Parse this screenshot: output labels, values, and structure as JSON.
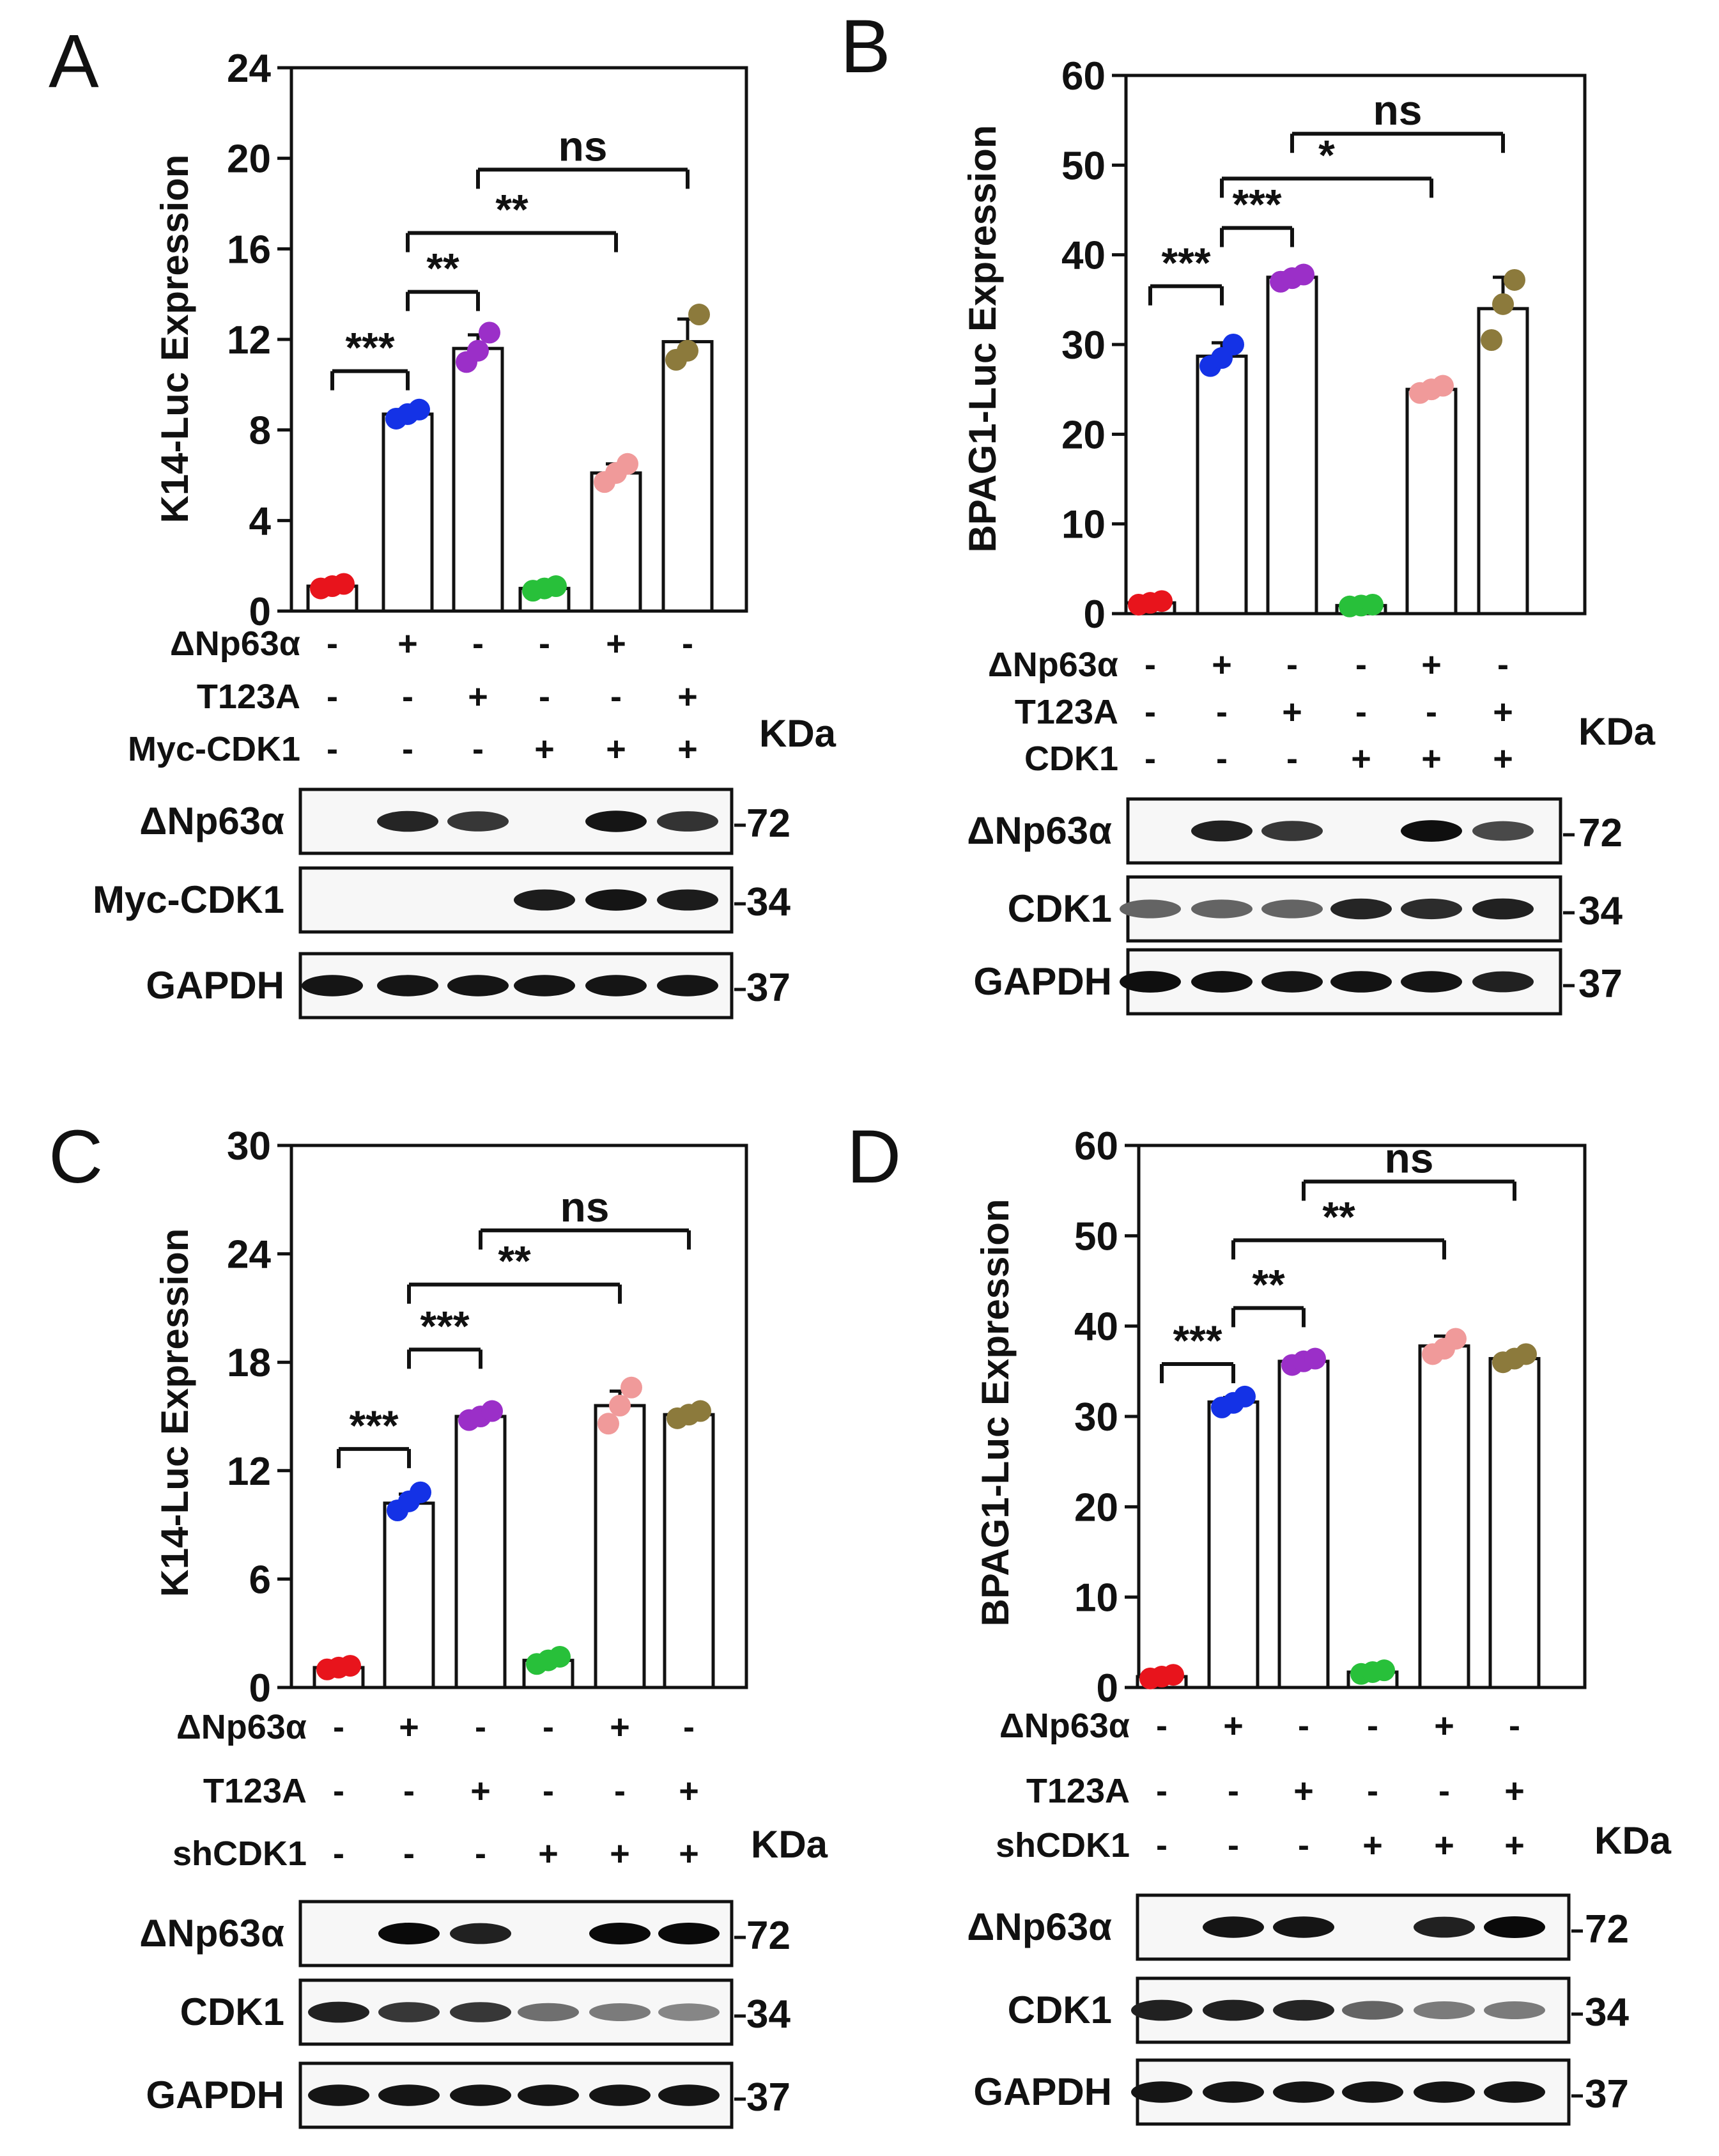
{
  "chart_data": [
    {
      "panel": "A",
      "type": "bar",
      "ylabel": "K14-Luc Expression",
      "ylim": [
        0,
        24
      ],
      "yticks": [
        0,
        4,
        8,
        12,
        16,
        20,
        24
      ],
      "values": [
        1.1,
        8.7,
        11.6,
        1.0,
        6.1,
        11.9
      ],
      "errors": [
        0.1,
        0.2,
        0.6,
        0.1,
        0.4,
        1.0
      ],
      "points": [
        [
          1.0,
          1.1,
          1.2
        ],
        [
          8.5,
          8.7,
          8.9
        ],
        [
          11.0,
          11.5,
          12.3
        ],
        [
          0.9,
          1.0,
          1.1
        ],
        [
          5.7,
          6.1,
          6.5
        ],
        [
          11.1,
          11.5,
          13.1
        ]
      ],
      "point_colors": [
        "#e8141c",
        "#1432e6",
        "#9b2fc8",
        "#28c03a",
        "#f09a9a",
        "#8c7a3c"
      ],
      "conditions": [
        {
          "label": "ΔNp63α",
          "signs": [
            "-",
            "+",
            "-",
            "-",
            "+",
            "-"
          ]
        },
        {
          "label": "T123A",
          "signs": [
            "-",
            "-",
            "+",
            "-",
            "-",
            "+"
          ]
        },
        {
          "label": "Myc-CDK1",
          "signs": [
            "-",
            "-",
            "-",
            "+",
            "+",
            "+"
          ]
        }
      ],
      "significance": [
        {
          "from": 0,
          "to": 1,
          "y": 10.6,
          "label": "***"
        },
        {
          "from": 1,
          "to": 2,
          "y": 14.1,
          "label": "**"
        },
        {
          "from": 1,
          "to": 4,
          "y": 16.7,
          "label": "**"
        },
        {
          "from": 2,
          "to": 5,
          "y": 19.5,
          "label": "ns"
        }
      ],
      "kda_label": "KDa",
      "blots": [
        {
          "label": "ΔNp63α",
          "mw": "72",
          "intensity": [
            0,
            0.88,
            0.8,
            0,
            0.95,
            0.82
          ]
        },
        {
          "label": "Myc-CDK1",
          "mw": "34",
          "intensity": [
            0,
            0,
            0,
            0.92,
            0.95,
            0.92
          ]
        },
        {
          "label": "GAPDH",
          "mw": "37",
          "intensity": [
            0.95,
            0.95,
            0.95,
            0.95,
            0.95,
            0.95
          ]
        }
      ]
    },
    {
      "panel": "B",
      "type": "bar",
      "ylabel": "BPAG1-Luc Expression",
      "ylim": [
        0,
        60
      ],
      "yticks": [
        0,
        10,
        20,
        30,
        40,
        50,
        60
      ],
      "values": [
        1.2,
        28.7,
        37.5,
        0.9,
        25.0,
        34.0
      ],
      "errors": [
        0.2,
        1.5,
        0.5,
        0.1,
        0.4,
        3.5
      ],
      "points": [
        [
          1.0,
          1.2,
          1.4
        ],
        [
          27.6,
          28.5,
          30.0
        ],
        [
          37.0,
          37.4,
          37.8
        ],
        [
          0.8,
          0.9,
          1.0
        ],
        [
          24.6,
          25.0,
          25.4
        ],
        [
          30.5,
          34.5,
          37.2
        ]
      ],
      "point_colors": [
        "#e8141c",
        "#1432e6",
        "#9b2fc8",
        "#28c03a",
        "#f09a9a",
        "#8c7a3c"
      ],
      "conditions": [
        {
          "label": "ΔNp63α",
          "signs": [
            "-",
            "+",
            "-",
            "-",
            "+",
            "-"
          ]
        },
        {
          "label": "T123A",
          "signs": [
            "-",
            "-",
            "+",
            "-",
            "-",
            "+"
          ]
        },
        {
          "label": "CDK1",
          "signs": [
            "-",
            "-",
            "-",
            "+",
            "+",
            "+"
          ]
        }
      ],
      "significance": [
        {
          "from": 0,
          "to": 1,
          "y": 36.5,
          "label": "***"
        },
        {
          "from": 1,
          "to": 2,
          "y": 43.0,
          "label": "***"
        },
        {
          "from": 1,
          "to": 4,
          "y": 48.5,
          "label": "*"
        },
        {
          "from": 2,
          "to": 5,
          "y": 53.5,
          "label": "ns"
        }
      ],
      "kda_label": "KDa",
      "blots": [
        {
          "label": "ΔNp63α",
          "mw": "72",
          "intensity": [
            0,
            0.9,
            0.8,
            0,
            0.98,
            0.72
          ]
        },
        {
          "label": "CDK1",
          "mw": "34",
          "intensity": [
            0.6,
            0.6,
            0.6,
            0.88,
            0.85,
            0.9
          ]
        },
        {
          "label": "GAPDH",
          "mw": "37",
          "intensity": [
            0.98,
            0.97,
            0.95,
            0.96,
            0.95,
            0.9
          ]
        }
      ]
    },
    {
      "panel": "C",
      "type": "bar",
      "ylabel": "K14-Luc Expression",
      "ylim": [
        0,
        30
      ],
      "yticks": [
        0,
        6,
        12,
        18,
        24,
        30
      ],
      "values": [
        1.1,
        10.2,
        15.0,
        1.5,
        15.6,
        15.1
      ],
      "errors": [
        0.1,
        0.5,
        0.2,
        0.2,
        0.8,
        0.2
      ],
      "points": [
        [
          1.0,
          1.1,
          1.2
        ],
        [
          9.8,
          10.3,
          10.8
        ],
        [
          14.8,
          15.0,
          15.3
        ],
        [
          1.3,
          1.5,
          1.7
        ],
        [
          14.6,
          15.6,
          16.6
        ],
        [
          14.9,
          15.1,
          15.3
        ]
      ],
      "point_colors": [
        "#e8141c",
        "#1432e6",
        "#9b2fc8",
        "#28c03a",
        "#f09a9a",
        "#8c7a3c"
      ],
      "conditions": [
        {
          "label": "ΔNp63α",
          "signs": [
            "-",
            "+",
            "-",
            "-",
            "+",
            "-"
          ]
        },
        {
          "label": "T123A",
          "signs": [
            "-",
            "-",
            "+",
            "-",
            "-",
            "+"
          ]
        },
        {
          "label": "shCDK1",
          "signs": [
            "-",
            "-",
            "-",
            "+",
            "+",
            "+"
          ]
        }
      ],
      "significance": [
        {
          "from": 0,
          "to": 1,
          "y": 13.2,
          "label": "***"
        },
        {
          "from": 1,
          "to": 2,
          "y": 18.7,
          "label": "***"
        },
        {
          "from": 1,
          "to": 4,
          "y": 22.3,
          "label": "**"
        },
        {
          "from": 2,
          "to": 5,
          "y": 25.3,
          "label": "ns"
        }
      ],
      "kda_label": "KDa",
      "blots": [
        {
          "label": "ΔNp63α",
          "mw": "72",
          "intensity": [
            0,
            1.0,
            0.9,
            0,
            1.0,
            1.0
          ]
        },
        {
          "label": "CDK1",
          "mw": "34",
          "intensity": [
            0.9,
            0.8,
            0.8,
            0.55,
            0.5,
            0.45
          ]
        },
        {
          "label": "GAPDH",
          "mw": "37",
          "intensity": [
            0.95,
            0.95,
            0.95,
            0.95,
            0.95,
            0.95
          ]
        }
      ]
    },
    {
      "panel": "D",
      "type": "bar",
      "ylabel": "BPAG1-Luc Expression",
      "ylim": [
        0,
        60
      ],
      "yticks": [
        0,
        10,
        20,
        30,
        40,
        50,
        60
      ],
      "values": [
        1.2,
        31.6,
        36.1,
        1.7,
        37.8,
        36.4
      ],
      "errors": [
        0.1,
        0.5,
        0.3,
        0.1,
        1.1,
        0.4
      ],
      "points": [
        [
          1.0,
          1.2,
          1.4
        ],
        [
          31.0,
          31.5,
          32.2
        ],
        [
          35.7,
          36.1,
          36.4
        ],
        [
          1.5,
          1.7,
          1.9
        ],
        [
          36.9,
          37.5,
          38.6
        ],
        [
          36.0,
          36.4,
          36.9
        ]
      ],
      "point_colors": [
        "#e8141c",
        "#1432e6",
        "#9b2fc8",
        "#28c03a",
        "#f09a9a",
        "#8c7a3c"
      ],
      "conditions": [
        {
          "label": "ΔNp63α",
          "signs": [
            "-",
            "+",
            "-",
            "-",
            "+",
            "-"
          ]
        },
        {
          "label": "T123A",
          "signs": [
            "-",
            "-",
            "+",
            "-",
            "-",
            "+"
          ]
        },
        {
          "label": "shCDK1",
          "signs": [
            "-",
            "-",
            "-",
            "+",
            "+",
            "+"
          ]
        }
      ],
      "significance": [
        {
          "from": 0,
          "to": 1,
          "y": 35.8,
          "label": "***"
        },
        {
          "from": 1,
          "to": 2,
          "y": 42.0,
          "label": "**"
        },
        {
          "from": 1,
          "to": 4,
          "y": 49.5,
          "label": "**"
        },
        {
          "from": 2,
          "to": 5,
          "y": 56.0,
          "label": "ns"
        }
      ],
      "kda_label": "KDa",
      "blots": [
        {
          "label": "ΔNp63α",
          "mw": "72",
          "intensity": [
            0,
            0.95,
            0.95,
            0,
            0.9,
            1.0
          ]
        },
        {
          "label": "CDK1",
          "mw": "34",
          "intensity": [
            0.9,
            0.9,
            0.88,
            0.6,
            0.5,
            0.5
          ]
        },
        {
          "label": "GAPDH",
          "mw": "37",
          "intensity": [
            0.95,
            0.95,
            0.95,
            0.95,
            0.95,
            0.95
          ]
        }
      ]
    }
  ]
}
